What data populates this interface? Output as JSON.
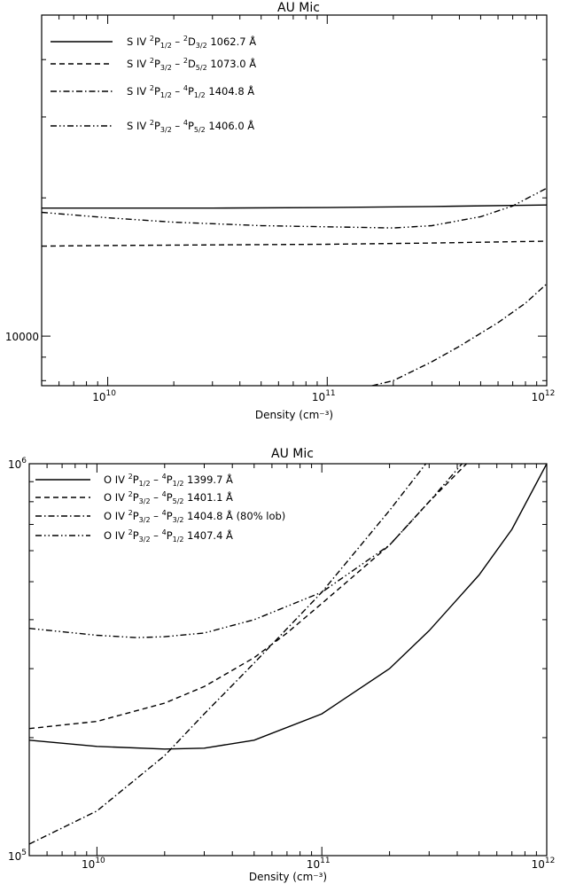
{
  "chart_data": [
    {
      "type": "line",
      "title": "AU Mic",
      "xlabel": "Density (cm⁻³)",
      "xscale": "log",
      "yscale": "log",
      "xlim": [
        5000000000.0,
        1000000000000.0
      ],
      "ylim": [
        7800,
        50000
      ],
      "x_ticks": [
        {
          "value": 10000000000.0,
          "label": "10",
          "exp": "10"
        },
        {
          "value": 100000000000.0,
          "label": "10",
          "exp": "11"
        },
        {
          "value": 1000000000000.0,
          "label": "10",
          "exp": "12"
        }
      ],
      "y_ticks": [
        {
          "value": 10000,
          "label": "10000"
        }
      ],
      "legend_position": "top-left",
      "series": [
        {
          "name": "S IV  ²P₁/₂ – ²D₃/₂ 1062.7 Å",
          "style": "solid",
          "x": [
            5000000000.0,
            10000000000.0,
            30000000000.0,
            100000000000.0,
            300000000000.0,
            1000000000000.0
          ],
          "y": [
            19000,
            19000,
            19000,
            19050,
            19150,
            19300
          ]
        },
        {
          "name": "S IV  ²P₃/₂ – ²D₅/₂ 1073.0 Å",
          "style": "dashed",
          "x": [
            5000000000.0,
            10000000000.0,
            30000000000.0,
            100000000000.0,
            300000000000.0,
            1000000000000.0
          ],
          "y": [
            15700,
            15750,
            15800,
            15850,
            15950,
            16100
          ]
        },
        {
          "name": "S IV  ²P₁/₂ – ⁴P₁/₂ 1404.8 Å",
          "style": "dashdot",
          "x": [
            160000000000.0,
            200000000000.0,
            300000000000.0,
            400000000000.0,
            600000000000.0,
            800000000000.0,
            1000000000000.0
          ],
          "y": [
            7800,
            8000,
            8800,
            9500,
            10700,
            11800,
            13000
          ]
        },
        {
          "name": "S IV  ²P₃/₂ – ⁴P₅/₂ 1406.0 Å",
          "style": "dashdotdot",
          "x": [
            5000000000.0,
            10000000000.0,
            20000000000.0,
            50000000000.0,
            100000000000.0,
            200000000000.0,
            300000000000.0,
            500000000000.0,
            700000000000.0,
            1000000000000.0
          ],
          "y": [
            18600,
            18100,
            17700,
            17400,
            17300,
            17200,
            17400,
            18200,
            19200,
            21000
          ]
        }
      ]
    },
    {
      "type": "line",
      "title": "AU Mic",
      "xlabel": "Density (cm⁻³)",
      "xscale": "log",
      "yscale": "log",
      "xlim": [
        5000000000.0,
        1000000000000.0
      ],
      "ylim": [
        100000.0,
        1000000.0
      ],
      "x_ticks": [
        {
          "value": 10000000000.0,
          "label": "10",
          "exp": "10"
        },
        {
          "value": 100000000000.0,
          "label": "10",
          "exp": "11"
        },
        {
          "value": 1000000000000.0,
          "label": "10",
          "exp": "12"
        }
      ],
      "y_ticks": [
        {
          "value": 100000.0,
          "label": "10",
          "exp": "5"
        },
        {
          "value": 1000000.0,
          "label": "10",
          "exp": "6"
        }
      ],
      "legend_position": "top-left",
      "series": [
        {
          "name": "O IV ²P₁/₂ – ⁴P₁/₂ 1399.7 Å",
          "style": "solid",
          "x": [
            5000000000.0,
            10000000000.0,
            20000000000.0,
            30000000000.0,
            50000000000.0,
            100000000000.0,
            200000000000.0,
            300000000000.0,
            500000000000.0,
            700000000000.0,
            1000000000000.0
          ],
          "y": [
            197000,
            190000,
            187000,
            188000,
            197000,
            230000,
            300000,
            375000,
            520000,
            680000,
            1000000
          ]
        },
        {
          "name": "O IV ²P₃/₂ – ⁴P₅/₂ 1401.1 Å",
          "style": "dashed",
          "x": [
            5000000000.0,
            10000000000.0,
            20000000000.0,
            30000000000.0,
            50000000000.0,
            70000000000.0,
            100000000000.0,
            200000000000.0,
            300000000000.0,
            440000000000.0
          ],
          "y": [
            211000,
            220000,
            245000,
            270000,
            320000,
            370000,
            440000,
            620000,
            800000,
            1000000
          ]
        },
        {
          "name": "O IV ²P₃/₂ – ⁴P₃/₂ 1404.8 Å (80% lob)",
          "style": "dashdot",
          "x": [
            5000000000.0,
            10000000000.0,
            20000000000.0,
            30000000000.0,
            50000000000.0,
            100000000000.0,
            200000000000.0,
            290000000000.0
          ],
          "y": [
            107000,
            130000,
            180000,
            230000,
            310000,
            470000,
            760000,
            1000000
          ]
        },
        {
          "name": "O IV ²P₃/₂ – ⁴P₁/₂ 1407.4 Å",
          "style": "dashdotdot",
          "x": [
            5000000000.0,
            10000000000.0,
            15000000000.0,
            20000000000.0,
            30000000000.0,
            50000000000.0,
            100000000000.0,
            200000000000.0,
            300000000000.0,
            420000000000.0
          ],
          "y": [
            380000,
            365000,
            360000,
            362000,
            370000,
            400000,
            470000,
            620000,
            800000,
            1000000
          ]
        }
      ]
    }
  ],
  "legend_top": [
    {
      "pre": "S IV  ",
      "parts": [
        [
          "",
          "2"
        ],
        [
          "P",
          ""
        ],
        [
          "",
          "1/2"
        ],
        [
          " – ",
          ""
        ],
        [
          "",
          "2"
        ],
        [
          "D",
          ""
        ],
        [
          "",
          "3/2"
        ],
        [
          " 1062.7 Å",
          ""
        ]
      ]
    },
    {
      "pre": "S IV  ",
      "parts": [
        [
          "",
          "2"
        ],
        [
          "P",
          ""
        ],
        [
          "",
          "3/2"
        ],
        [
          " – ",
          ""
        ],
        [
          "",
          "2"
        ],
        [
          "D",
          ""
        ],
        [
          "",
          "5/2"
        ],
        [
          " 1073.0 Å",
          ""
        ]
      ]
    },
    {
      "pre": "S IV  ",
      "parts": [
        [
          "",
          "2"
        ],
        [
          "P",
          ""
        ],
        [
          "",
          "1/2"
        ],
        [
          " – ",
          ""
        ],
        [
          "",
          "4"
        ],
        [
          "P",
          ""
        ],
        [
          "",
          "1/2"
        ],
        [
          " 1404.8 Å",
          ""
        ]
      ]
    },
    {
      "pre": "S IV  ",
      "parts": [
        [
          "",
          "2"
        ],
        [
          "P",
          ""
        ],
        [
          "",
          "3/2"
        ],
        [
          " – ",
          ""
        ],
        [
          "",
          "4"
        ],
        [
          "P",
          ""
        ],
        [
          "",
          "5/2"
        ],
        [
          " 1406.0 Å",
          ""
        ]
      ]
    }
  ],
  "legend_bottom": [
    {
      "pre": "O IV ",
      "parts": [
        [
          "",
          "2"
        ],
        [
          "P",
          ""
        ],
        [
          "",
          "1/2"
        ],
        [
          " – ",
          ""
        ],
        [
          "",
          "4"
        ],
        [
          "P",
          ""
        ],
        [
          "",
          "1/2"
        ],
        [
          " 1399.7 Å",
          ""
        ]
      ]
    },
    {
      "pre": "O IV ",
      "parts": [
        [
          "",
          "2"
        ],
        [
          "P",
          ""
        ],
        [
          "",
          "3/2"
        ],
        [
          " – ",
          ""
        ],
        [
          "",
          "4"
        ],
        [
          "P",
          ""
        ],
        [
          "",
          "5/2"
        ],
        [
          " 1401.1 Å",
          ""
        ]
      ]
    },
    {
      "pre": "O IV ",
      "parts": [
        [
          "",
          "2"
        ],
        [
          "P",
          ""
        ],
        [
          "",
          "3/2"
        ],
        [
          " – ",
          ""
        ],
        [
          "",
          "4"
        ],
        [
          "P",
          ""
        ],
        [
          "",
          "3/2"
        ],
        [
          " 1404.8 Å (80% lob)",
          ""
        ]
      ]
    },
    {
      "pre": "O IV ",
      "parts": [
        [
          "",
          "2"
        ],
        [
          "P",
          ""
        ],
        [
          "",
          "3/2"
        ],
        [
          " – ",
          ""
        ],
        [
          "",
          "4"
        ],
        [
          "P",
          ""
        ],
        [
          "",
          "1/2"
        ],
        [
          " 1407.4 Å",
          ""
        ]
      ]
    }
  ]
}
